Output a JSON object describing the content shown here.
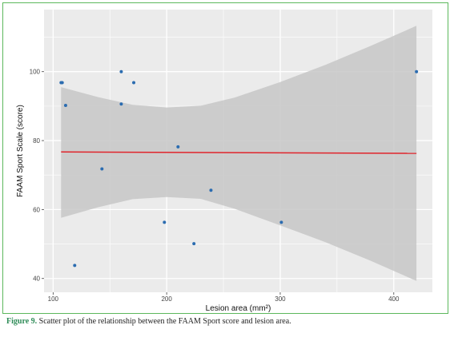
{
  "caption": {
    "label": "Figure 9.",
    "text": " Scatter plot of the relationship between the FAAM Sport score and lesion area."
  },
  "chart_data": {
    "type": "scatter",
    "xlabel": "Lesion area (mm²)",
    "ylabel": "FAAM Sport Scale (score)",
    "xlim": [
      92,
      434
    ],
    "ylim": [
      36,
      118
    ],
    "x_ticks": [
      100,
      200,
      300,
      400
    ],
    "y_ticks": [
      40,
      60,
      80,
      100
    ],
    "grid": true,
    "points": [
      {
        "x": 107,
        "y": 96.8
      },
      {
        "x": 108,
        "y": 96.8
      },
      {
        "x": 111,
        "y": 90.2
      },
      {
        "x": 119,
        "y": 43.8
      },
      {
        "x": 143,
        "y": 71.8
      },
      {
        "x": 160,
        "y": 100
      },
      {
        "x": 160,
        "y": 90.6
      },
      {
        "x": 171,
        "y": 96.8
      },
      {
        "x": 198,
        "y": 56.3
      },
      {
        "x": 210,
        "y": 78.2
      },
      {
        "x": 224,
        "y": 50.1
      },
      {
        "x": 239,
        "y": 65.6
      },
      {
        "x": 301,
        "y": 56.3
      },
      {
        "x": 420,
        "y": 100
      }
    ],
    "fit_line": {
      "x": [
        107,
        420
      ],
      "y": [
        76.7,
        76.3
      ]
    },
    "confidence_band": {
      "x": [
        107,
        140,
        170,
        200,
        230,
        260,
        300,
        340,
        380,
        420
      ],
      "upper": [
        95.5,
        92.6,
        90.4,
        89.6,
        90.1,
        92.5,
        97.0,
        102.0,
        107.5,
        113.3
      ],
      "lower": [
        57.6,
        60.7,
        63.0,
        63.6,
        63.1,
        60.2,
        55.4,
        50.5,
        45.1,
        39.3
      ]
    },
    "colors": {
      "panel": "#ebebeb",
      "grid": "#ffffff",
      "band": "#c7c7c7",
      "line": "#e0242b",
      "point": "#2b6cb0"
    }
  }
}
